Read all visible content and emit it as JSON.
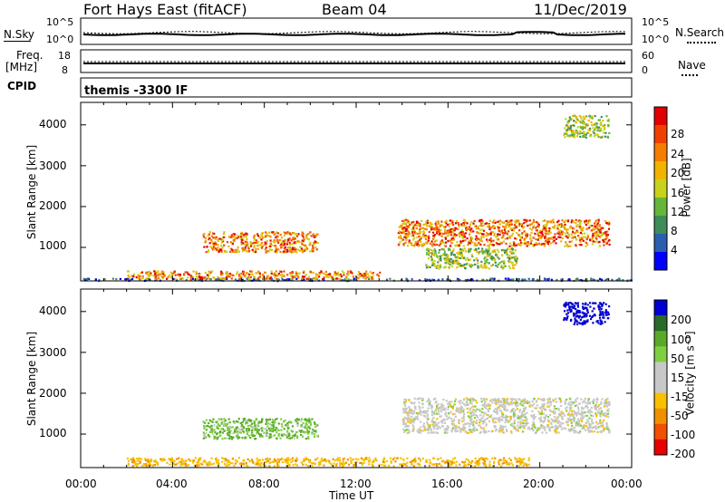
{
  "header": {
    "station": "Fort Hays East (fitACF)",
    "beam": "Beam 04",
    "date": "11/Dec/2019"
  },
  "noise_panel": {
    "left_label": "N.Sky",
    "left_ticks": [
      "10^5",
      "10^0"
    ],
    "right_label": "N.Search",
    "right_ticks": [
      "10^5",
      "10^0"
    ]
  },
  "freq_panel": {
    "left_label_1": "Freq.",
    "left_label_2": "[MHz]",
    "left_ticks": [
      "18",
      "8"
    ],
    "right_label": "Nave",
    "right_ticks": [
      "60",
      "0"
    ]
  },
  "cpid": {
    "label": "CPID",
    "value": "themis -3300 IF"
  },
  "time_axis": {
    "ticks": [
      "00:00",
      "04:00",
      "08:00",
      "12:00",
      "16:00",
      "20:00",
      "00:00"
    ],
    "label": "Time UT"
  },
  "range_axis": {
    "label": "Slant Range [km]",
    "ticks": [
      "1000",
      "2000",
      "3000",
      "4000"
    ]
  },
  "power_colorbar": {
    "label": "Power [dB]",
    "ticks": [
      "4",
      "8",
      "12",
      "16",
      "20",
      "24",
      "28"
    ],
    "colors": [
      "#0000ff",
      "#2a5fb0",
      "#3f8c5a",
      "#66b63a",
      "#c8d21a",
      "#f0b400",
      "#f57d00",
      "#f04000",
      "#e00000"
    ]
  },
  "velocity_colorbar": {
    "label": "Velocity [m s⁻¹]",
    "ticks": [
      "200",
      "100",
      "50",
      "15",
      "-15",
      "-50",
      "-100",
      "-200"
    ],
    "colors": [
      "#0000d0",
      "#2a6a2a",
      "#5aaa2a",
      "#7ed040",
      "#c8c8c8",
      "#c8c8c8",
      "#f8c000",
      "#f09000",
      "#f05000",
      "#e80000"
    ]
  },
  "chart_data": [
    {
      "type": "heatmap",
      "name": "power",
      "title": "Power [dB]",
      "xlabel": "Time UT",
      "ylabel": "Slant Range [km]",
      "xlim": [
        0,
        24
      ],
      "ylim": [
        180,
        4550
      ],
      "regions": [
        {
          "t": [
            0.0,
            24.0
          ],
          "r": [
            200,
            260
          ],
          "level": "low",
          "note": "ground scatter near radar"
        },
        {
          "t": [
            2.0,
            13.0
          ],
          "r": [
            240,
            440
          ],
          "level": "high"
        },
        {
          "t": [
            5.3,
            10.3
          ],
          "r": [
            900,
            1400
          ],
          "level": "high"
        },
        {
          "t": [
            13.8,
            23.0
          ],
          "r": [
            1050,
            1700
          ],
          "level": "high"
        },
        {
          "t": [
            15.0,
            19.0
          ],
          "r": [
            500,
            1000
          ],
          "level": "mid"
        },
        {
          "t": [
            21.0,
            23.0
          ],
          "r": [
            3700,
            4250
          ],
          "level": "mid"
        }
      ]
    },
    {
      "type": "heatmap",
      "name": "velocity",
      "title": "Velocity [m s-1]",
      "xlabel": "Time UT",
      "ylabel": "Slant Range [km]",
      "xlim": [
        0,
        24
      ],
      "ylim": [
        180,
        4550
      ],
      "regions": [
        {
          "t": [
            2.0,
            19.5
          ],
          "r": [
            240,
            440
          ],
          "velocity": -40
        },
        {
          "t": [
            5.3,
            10.3
          ],
          "r": [
            900,
            1400
          ],
          "velocity": 30
        },
        {
          "t": [
            14.0,
            23.0
          ],
          "r": [
            1050,
            1900
          ],
          "velocity": 0
        },
        {
          "t": [
            21.0,
            23.0
          ],
          "r": [
            3700,
            4250
          ],
          "velocity": 220
        }
      ]
    }
  ]
}
